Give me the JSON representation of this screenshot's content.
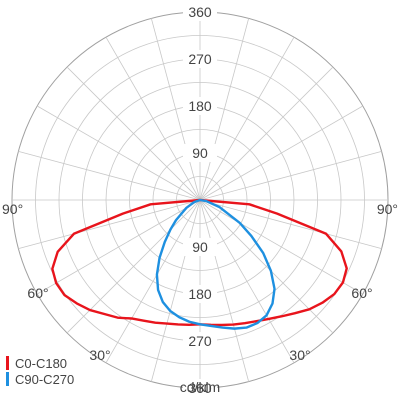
{
  "chart_data": {
    "type": "polar",
    "unit_label": "cd/klm",
    "radial_ticks": [
      90,
      180,
      270,
      360
    ],
    "r_max": 360,
    "angle_labels_left": [
      "90°",
      "60°",
      "30°"
    ],
    "angle_labels_right": [
      "90°",
      "60°",
      "30°"
    ],
    "series": [
      {
        "name": "C0-C180",
        "color": "#e8141c",
        "points": [
          [
            -90,
            0
          ],
          [
            -85,
            95
          ],
          [
            -80,
            150
          ],
          [
            -75,
            250
          ],
          [
            -70,
            290
          ],
          [
            -65,
            312
          ],
          [
            -60,
            318
          ],
          [
            -55,
            317
          ],
          [
            -50,
            308
          ],
          [
            -45,
            298
          ],
          [
            -40,
            285
          ],
          [
            -35,
            275
          ],
          [
            -30,
            262
          ],
          [
            -25,
            255
          ],
          [
            -20,
            250
          ],
          [
            -15,
            245
          ],
          [
            -10,
            242
          ],
          [
            -5,
            240
          ],
          [
            0,
            238
          ],
          [
            5,
            240
          ],
          [
            10,
            243
          ],
          [
            15,
            247
          ],
          [
            20,
            251
          ],
          [
            25,
            256
          ],
          [
            30,
            263
          ],
          [
            35,
            272
          ],
          [
            40,
            283
          ],
          [
            45,
            296
          ],
          [
            50,
            306
          ],
          [
            55,
            314
          ],
          [
            60,
            316
          ],
          [
            65,
            310
          ],
          [
            70,
            288
          ],
          [
            75,
            250
          ],
          [
            80,
            150
          ],
          [
            85,
            95
          ],
          [
            90,
            0
          ]
        ]
      },
      {
        "name": "C90-C270",
        "color": "#1e90e0",
        "points": [
          [
            -90,
            0
          ],
          [
            -70,
            12
          ],
          [
            -60,
            30
          ],
          [
            -50,
            60
          ],
          [
            -45,
            80
          ],
          [
            -40,
            105
          ],
          [
            -35,
            135
          ],
          [
            -30,
            165
          ],
          [
            -25,
            190
          ],
          [
            -20,
            208
          ],
          [
            -15,
            220
          ],
          [
            -10,
            228
          ],
          [
            -5,
            234
          ],
          [
            0,
            238
          ],
          [
            5,
            242
          ],
          [
            10,
            248
          ],
          [
            15,
            255
          ],
          [
            20,
            260
          ],
          [
            25,
            260
          ],
          [
            30,
            255
          ],
          [
            35,
            242
          ],
          [
            40,
            222
          ],
          [
            45,
            192
          ],
          [
            50,
            158
          ],
          [
            55,
            120
          ],
          [
            60,
            88
          ],
          [
            70,
            40
          ],
          [
            80,
            12
          ],
          [
            90,
            0
          ]
        ]
      }
    ]
  }
}
